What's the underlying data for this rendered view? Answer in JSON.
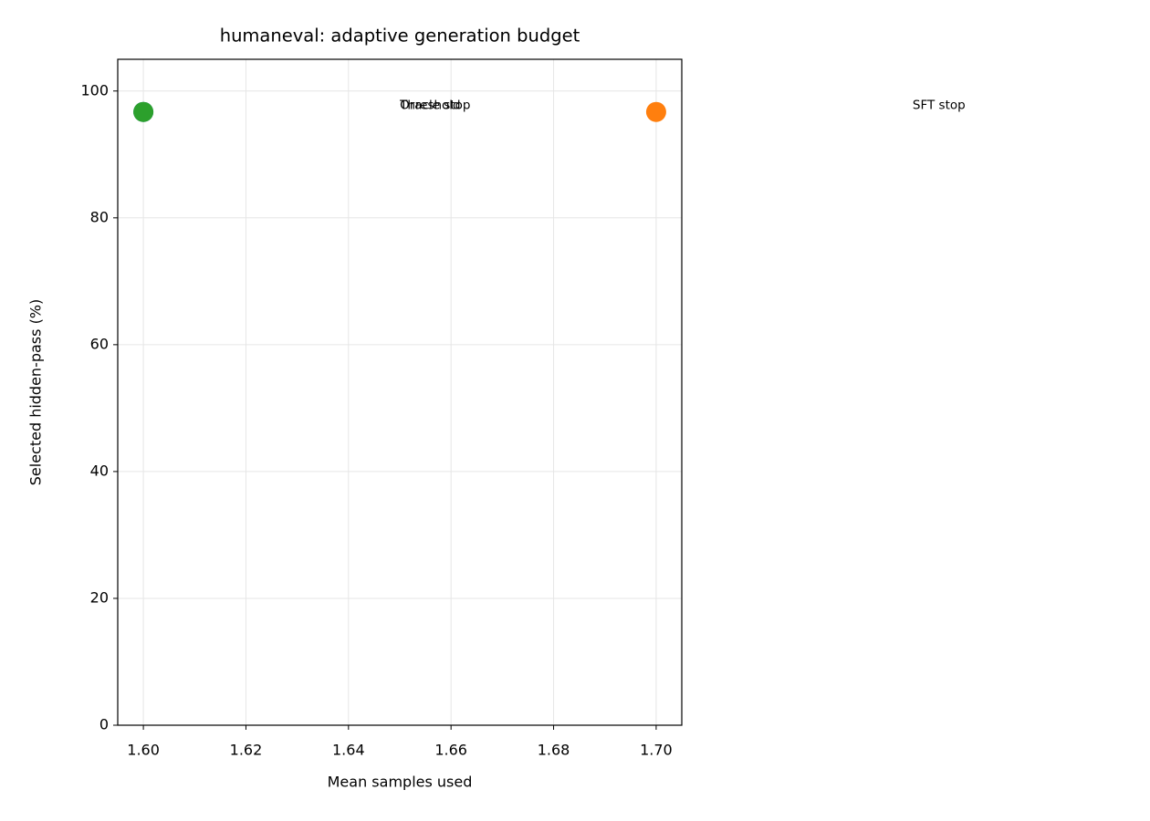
{
  "chart_data": {
    "type": "scatter",
    "title": "humaneval: adaptive generation budget",
    "x_label": "Mean samples used",
    "y_label": "Selected hidden-pass (%)",
    "series": [
      {
        "name": "Threshold",
        "color": "#1f77b4",
        "x": [
          1.6
        ],
        "values": [
          96.7
        ]
      },
      {
        "name": "SFT stop",
        "color": "#ff7f0e",
        "x": [
          1.7
        ],
        "values": [
          96.7
        ]
      },
      {
        "name": "Oracle stop",
        "color": "#2ca02c",
        "x": [
          1.6
        ],
        "values": [
          96.7
        ]
      }
    ],
    "xlim": [
      1.595,
      1.705
    ],
    "ylim": [
      0,
      105
    ],
    "xticks": [
      {
        "value": 1.6,
        "label": "1.60"
      },
      1.62,
      1.64,
      1.66,
      1.68,
      {
        "value": 1.7,
        "label": "1.70"
      }
    ],
    "yticks": [
      0,
      20,
      40,
      60,
      80,
      100
    ],
    "grid": true
  }
}
